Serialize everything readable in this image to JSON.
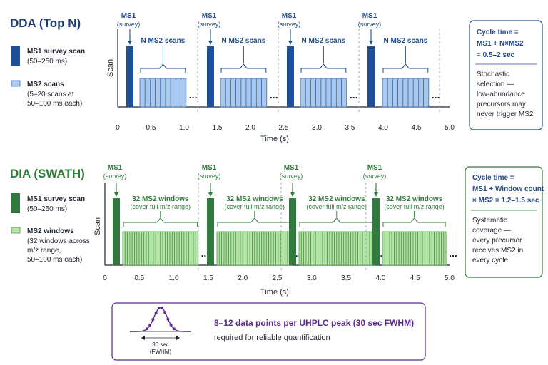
{
  "dda": {
    "title": "DDA (Top N)",
    "legend": {
      "ms1_label": "MS1 survey scan",
      "ms1_sub": "(50–250 ms)",
      "ms2_label": "MS2 scans",
      "ms2_sub_lines": [
        "(5–20 scans at",
        "50–100 ms each)"
      ]
    },
    "ms1_label": "MS1",
    "ms1_sub": "(survey)",
    "group_label": "N MS2 scans",
    "axis": {
      "xlabel": "Time (s)",
      "ylabel": "Scan",
      "ticks": [
        "0",
        "0.5",
        "1.0",
        "1.5",
        "2.0",
        "2.5",
        "3.0",
        "3.5",
        "4.0",
        "4.5",
        "5.0"
      ]
    },
    "box": {
      "line1": "Cycle time =",
      "line2": "MS1 + N×MS2",
      "line3": "= 0.5–2 sec",
      "desc_lines": [
        "Stochastic",
        "selection —",
        "low-abundance",
        "precursors may",
        "never trigger MS2"
      ]
    },
    "colors": {
      "ms1": "#1f4f97",
      "ms2": "#a9c8ec",
      "ms2_stroke": "#3e6fb4"
    }
  },
  "dia": {
    "title": "DIA (SWATH)",
    "legend": {
      "ms1_label": "MS1 survey scan",
      "ms1_sub": "(50–250 ms)",
      "ms2_label": "MS2 windows",
      "ms2_sub_lines": [
        "(32 windows across",
        "m/z range,",
        "50–100 ms each)"
      ]
    },
    "ms1_label": "MS1",
    "ms1_sub": "(survey)",
    "group_label": "32 MS2 windows",
    "group_sub": "(cover full m/z range)",
    "axis": {
      "xlabel": "Time (s)",
      "ylabel": "Scan",
      "ticks": [
        "0",
        "0.5",
        "1.0",
        "1.5",
        "2.0",
        "2.5",
        "3.0",
        "3.5",
        "4.0",
        "4.5",
        "5.0"
      ]
    },
    "box": {
      "line1": "Cycle time =",
      "line2": "MS1 + Window count",
      "line3": "× MS2 = 1.2–1.5 sec",
      "desc_lines": [
        "Systematic",
        "coverage —",
        "every precursor",
        "receives MS2 in",
        "every cycle"
      ]
    },
    "colors": {
      "ms1": "#2f7a3c",
      "ms2": "#b7e3a8",
      "ms2_stroke": "#4d9a4a"
    }
  },
  "footer": {
    "title": "8–12 data points per UHPLC peak (30 sec FWHM)",
    "subtitle": "required for reliable quantification",
    "peak_label_lines": [
      "30 sec",
      "(FWHM)"
    ],
    "color": "#5a2a8c"
  },
  "ellipsis": "..."
}
